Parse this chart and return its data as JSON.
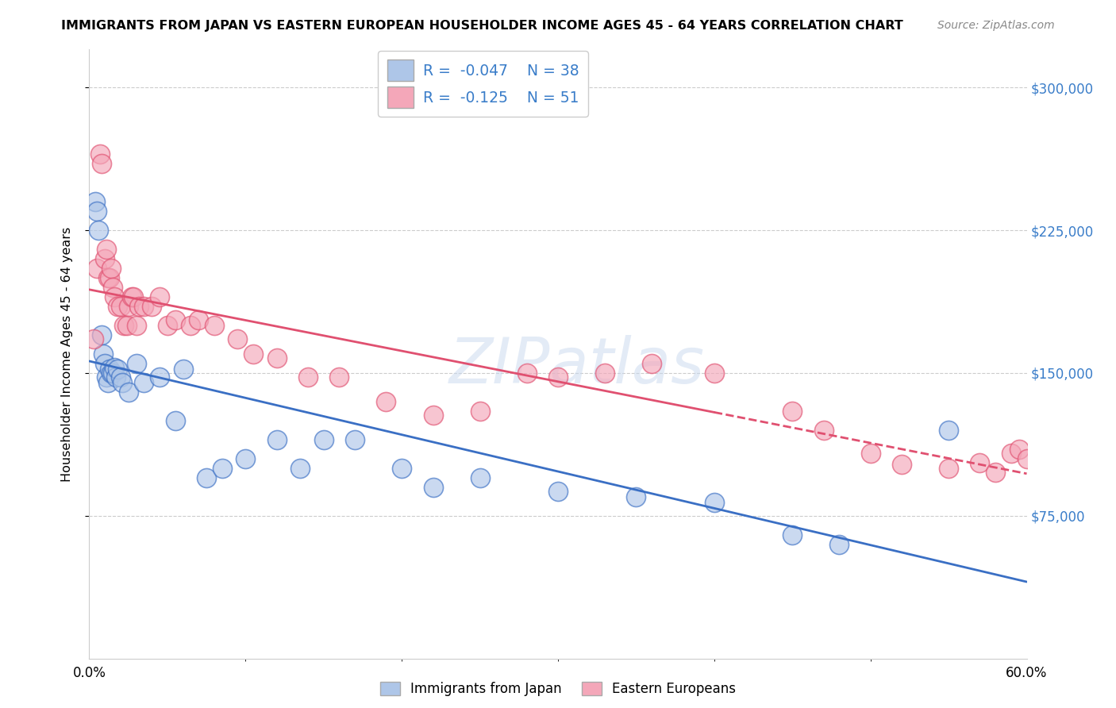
{
  "title": "IMMIGRANTS FROM JAPAN VS EASTERN EUROPEAN HOUSEHOLDER INCOME AGES 45 - 64 YEARS CORRELATION CHART",
  "source": "Source: ZipAtlas.com",
  "ylabel": "Householder Income Ages 45 - 64 years",
  "y_ticks": [
    75000,
    150000,
    225000,
    300000
  ],
  "y_tick_labels": [
    "$75,000",
    "$150,000",
    "$225,000",
    "$300,000"
  ],
  "legend_japan_R": "-0.047",
  "legend_japan_N": "38",
  "legend_eastern_R": "-0.125",
  "legend_eastern_N": "51",
  "japan_color": "#aec6e8",
  "eastern_color": "#f4a7b9",
  "japan_line_color": "#3a6fc4",
  "eastern_line_color": "#e05070",
  "background_color": "#ffffff",
  "watermark": "ZIPatlas",
  "xlim": [
    0,
    60
  ],
  "ylim": [
    0,
    320000
  ],
  "japan_x": [
    0.4,
    0.5,
    0.6,
    0.8,
    0.9,
    1.0,
    1.1,
    1.2,
    1.3,
    1.4,
    1.5,
    1.6,
    1.7,
    1.8,
    2.0,
    2.1,
    2.5,
    3.0,
    3.5,
    4.5,
    5.5,
    6.0,
    7.5,
    8.5,
    10.0,
    12.0,
    13.5,
    15.0,
    17.0,
    20.0,
    22.0,
    25.0,
    30.0,
    35.0,
    40.0,
    45.0,
    48.0,
    55.0
  ],
  "japan_y": [
    240000,
    235000,
    225000,
    170000,
    160000,
    155000,
    148000,
    145000,
    152000,
    150000,
    150000,
    153000,
    148000,
    152000,
    148000,
    145000,
    140000,
    155000,
    145000,
    148000,
    125000,
    152000,
    95000,
    100000,
    105000,
    115000,
    100000,
    115000,
    115000,
    100000,
    90000,
    95000,
    88000,
    85000,
    82000,
    65000,
    60000,
    120000
  ],
  "eastern_x": [
    0.3,
    0.5,
    0.7,
    0.8,
    1.0,
    1.1,
    1.2,
    1.3,
    1.4,
    1.5,
    1.6,
    1.8,
    2.0,
    2.2,
    2.4,
    2.5,
    2.7,
    2.8,
    3.0,
    3.2,
    3.5,
    4.0,
    4.5,
    5.0,
    5.5,
    6.5,
    7.0,
    8.0,
    9.5,
    10.5,
    12.0,
    14.0,
    16.0,
    19.0,
    22.0,
    25.0,
    28.0,
    30.0,
    33.0,
    36.0,
    40.0,
    45.0,
    47.0,
    50.0,
    52.0,
    55.0,
    57.0,
    58.0,
    59.0,
    59.5,
    60.0
  ],
  "eastern_y": [
    168000,
    205000,
    265000,
    260000,
    210000,
    215000,
    200000,
    200000,
    205000,
    195000,
    190000,
    185000,
    185000,
    175000,
    175000,
    185000,
    190000,
    190000,
    175000,
    185000,
    185000,
    185000,
    190000,
    175000,
    178000,
    175000,
    178000,
    175000,
    168000,
    160000,
    158000,
    148000,
    148000,
    135000,
    128000,
    130000,
    150000,
    148000,
    150000,
    155000,
    150000,
    130000,
    120000,
    108000,
    102000,
    100000,
    103000,
    98000,
    108000,
    110000,
    105000
  ]
}
